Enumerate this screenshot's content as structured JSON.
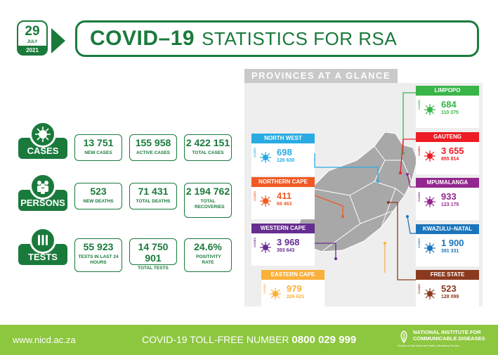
{
  "date": {
    "day": "29",
    "month": "JULY",
    "year": "2021"
  },
  "title": {
    "covid": "COVID–19",
    "rest": "STATISTICS FOR RSA"
  },
  "categories": {
    "cases": "CASES",
    "persons": "PERSONS",
    "tests": "TESTS"
  },
  "cases": [
    {
      "value": "13 751",
      "label": "NEW CASES"
    },
    {
      "value": "155 958",
      "label": "ACTIVE CASES"
    },
    {
      "value": "2 422 151",
      "label": "TOTAL CASES"
    }
  ],
  "persons": [
    {
      "value": "523",
      "label": "NEW DEATHS"
    },
    {
      "value": "71 431",
      "label": "TOTAL DEATHS"
    },
    {
      "value": "2 194 762",
      "label": "TOTAL RECOVERIES"
    }
  ],
  "tests": [
    {
      "value": "55 923",
      "label": "TESTS IN LAST 24 HOURS"
    },
    {
      "value": "14 750 901",
      "label": "TOTAL TESTS"
    },
    {
      "value": "24.6%",
      "label": "POSITIVITY RATE"
    }
  ],
  "provinces_header": "PROVINCES AT A GLANCE",
  "side_label": "CASES",
  "provinces": [
    {
      "name": "NORTH WEST",
      "new": "698",
      "total": "126 630",
      "color": "#29abe2"
    },
    {
      "name": "NORTHERN CAPE",
      "new": "411",
      "total": "66 463",
      "color": "#f15a24"
    },
    {
      "name": "WESTERN CAPE",
      "new": "3 968",
      "total": "393 643",
      "color": "#662d91"
    },
    {
      "name": "EASTERN CAPE",
      "new": "979",
      "total": "226 621",
      "color": "#fbb03b"
    },
    {
      "name": "LIMPOPO",
      "new": "684",
      "total": "110 375",
      "color": "#39b54a"
    },
    {
      "name": "GAUTENG",
      "new": "3 655",
      "total": "855 814",
      "color": "#ed1c24"
    },
    {
      "name": "MPUMALANGA",
      "new": "933",
      "total": "123 175",
      "color": "#93278f"
    },
    {
      "name": "KWAZULU–NATAL",
      "new": "1 900",
      "total": "391 331",
      "color": "#1b75bc"
    },
    {
      "name": "FREE STATE",
      "new": "523",
      "total": "128 099",
      "color": "#8b3a1f"
    }
  ],
  "footer": {
    "url": "www.nicd.ac.za",
    "tollfree_label": "COVID-19 TOLL-FREE NUMBER",
    "tollfree_number": "0800 029 999",
    "org_line1": "NATIONAL INSTITUTE FOR",
    "org_line2": "COMMUNICABLE DISEASES",
    "org_sub": "Division of the National Health Laboratory Service"
  },
  "colors": {
    "brand_green": "#1a7a3c",
    "footer_green": "#8dc63f"
  }
}
